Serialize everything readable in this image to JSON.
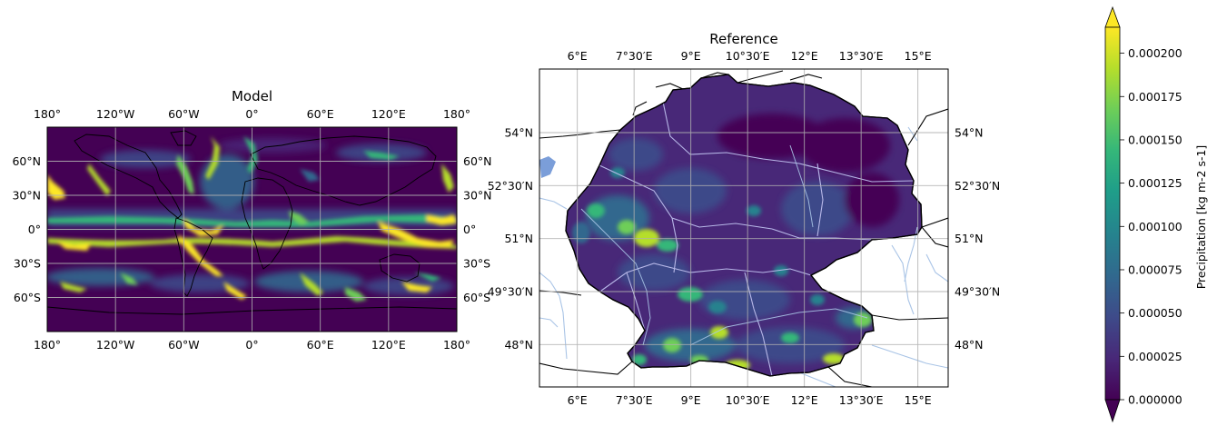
{
  "colors": {
    "viridis": [
      "#440154",
      "#482878",
      "#3e4a89",
      "#31688e",
      "#26828e",
      "#1f9e89",
      "#35b779",
      "#6ece58",
      "#b5de2b",
      "#fde725"
    ],
    "background_low": "#440154",
    "grid": "#b0b0b0",
    "coast": "#000000",
    "river": "#a9c4e6",
    "border_internal": "#b8b8e8"
  },
  "model": {
    "title": "Model",
    "x_ticks": [
      "180°",
      "120°W",
      "60°W",
      "0°",
      "60°E",
      "120°E",
      "180°"
    ],
    "y_ticks_left": [
      "60°N",
      "30°N",
      "0°",
      "30°S",
      "60°S"
    ],
    "y_ticks_right": [
      "60°N",
      "30°N",
      "0°",
      "30°S",
      "60°S"
    ],
    "x_range_deg": [
      -180,
      180
    ],
    "y_range_deg": [
      -90,
      90
    ],
    "grid_lons": [
      -120,
      -60,
      0,
      60,
      120
    ],
    "grid_lats": [
      60,
      30,
      0,
      -30,
      -60
    ]
  },
  "reference": {
    "title": "Reference",
    "x_ticks": [
      "6°E",
      "7°30′E",
      "9°E",
      "10°30′E",
      "12°E",
      "13°30′E",
      "15°E"
    ],
    "y_ticks_left": [
      "54°N",
      "52°30′N",
      "51°N",
      "49°30′N",
      "48°N"
    ],
    "y_ticks_right": [
      "54°N",
      "52°30′N",
      "51°N",
      "49°30′N",
      "48°N"
    ],
    "x_range_deg": [
      5.0,
      15.8
    ],
    "y_range_deg": [
      46.8,
      55.8
    ],
    "grid_lons": [
      6,
      7.5,
      9,
      10.5,
      12,
      13.5,
      15
    ],
    "grid_lats": [
      54,
      52.5,
      51,
      49.5,
      48
    ]
  },
  "colorbar": {
    "label": "Precipitation [kg m-2 s-1]",
    "ticks": [
      "0.000000",
      "0.000025",
      "0.000050",
      "0.000075",
      "0.000100",
      "0.000125",
      "0.000150",
      "0.000175",
      "0.000200"
    ],
    "min": 0,
    "max": 0.000215,
    "extend": "both"
  }
}
